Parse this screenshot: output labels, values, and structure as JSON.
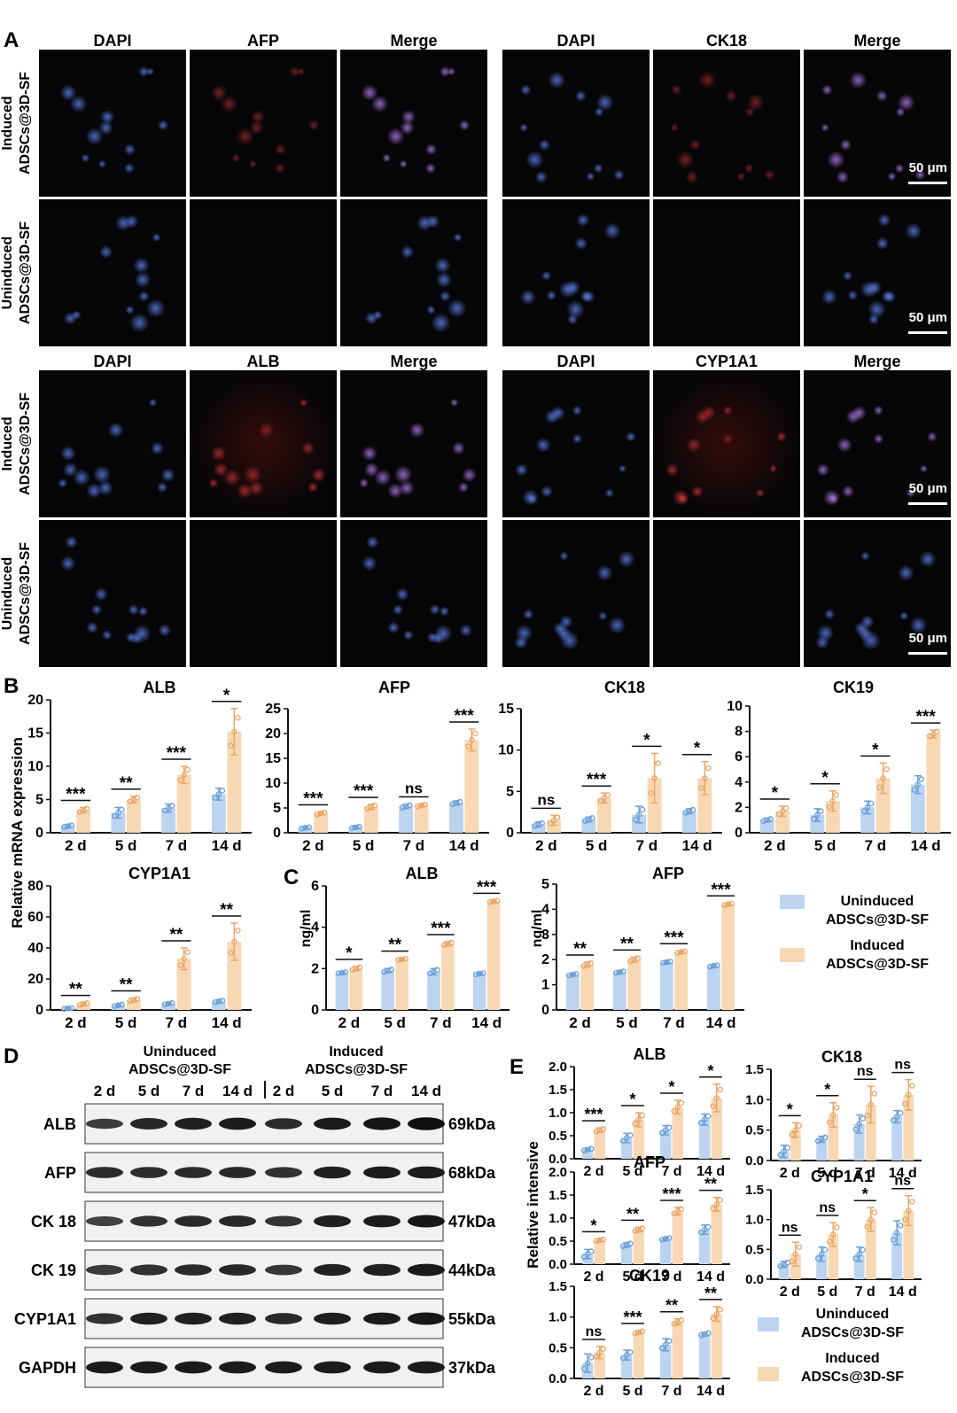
{
  "panel_a": {
    "letter": "A",
    "groups": [
      {
        "label_line1": "Induced",
        "label_line2": "ADSCs@3D-SF"
      },
      {
        "label_line1": "Uninduced",
        "label_line2": "ADSCs@3D-SF"
      },
      {
        "label_line1": "Induced",
        "label_line2": "ADSCs@3D-SF"
      },
      {
        "label_line1": "Uninduced",
        "label_line2": "ADSCs@3D-SF"
      }
    ],
    "headers_top": [
      "DAPI",
      "AFP",
      "Merge",
      "DAPI",
      "CK18",
      "Merge"
    ],
    "headers_bottom": [
      "DAPI",
      "ALB",
      "Merge",
      "DAPI",
      "CYP1A1",
      "Merge"
    ],
    "scale_bar": "50 μm"
  },
  "panel_b": {
    "letter": "B",
    "ylabel": "Relative mRNA expression"
  },
  "panel_c": {
    "letter": "C",
    "ylabel": "ng/ml"
  },
  "panel_d": {
    "letter": "D",
    "group1": {
      "line1": "Uninduced",
      "line2": "ADSCs@3D-SF"
    },
    "group2": {
      "line1": "Induced",
      "line2": "ADSCs@3D-SF"
    },
    "lanes": [
      "2 d",
      "5 d",
      "7 d",
      "14 d",
      "2 d",
      "5 d",
      "7 d",
      "14 d"
    ],
    "proteins": [
      {
        "name": "ALB",
        "kda": "69kDa",
        "intensity": [
          0.55,
          0.75,
          0.8,
          0.85,
          0.7,
          0.85,
          0.9,
          0.95
        ]
      },
      {
        "name": "AFP",
        "kda": "68kDa",
        "intensity": [
          0.7,
          0.7,
          0.7,
          0.72,
          0.65,
          0.8,
          0.85,
          0.85
        ]
      },
      {
        "name": "CK 18",
        "kda": "47kDa",
        "intensity": [
          0.5,
          0.65,
          0.7,
          0.72,
          0.62,
          0.8,
          0.85,
          0.88
        ]
      },
      {
        "name": "CK 19",
        "kda": "44kDa",
        "intensity": [
          0.55,
          0.65,
          0.7,
          0.72,
          0.6,
          0.78,
          0.8,
          0.85
        ]
      },
      {
        "name": "CYP1A1",
        "kda": "55kDa",
        "intensity": [
          0.65,
          0.8,
          0.8,
          0.8,
          0.72,
          0.82,
          0.85,
          0.88
        ]
      },
      {
        "name": "GAPDH",
        "kda": "37kDa",
        "intensity": [
          0.85,
          0.85,
          0.85,
          0.85,
          0.85,
          0.85,
          0.85,
          0.85
        ]
      }
    ]
  },
  "panel_e": {
    "letter": "E",
    "ylabel": "Relative intensive"
  },
  "legend": {
    "uninduced_line1": "Uninduced",
    "uninduced_line2": "ADSCs@3D-SF",
    "induced_line1": "Induced",
    "induced_line2": "ADSCs@3D-SF"
  },
  "colors": {
    "uninduced": "#bcd4ef",
    "induced": "#f8d8b4",
    "uninduced_dot": "#6a9fd8",
    "induced_dot": "#eaa566"
  },
  "chart_data": [
    {
      "id": "b-alb",
      "type": "bar",
      "title": "ALB",
      "categories": [
        "2 d",
        "5 d",
        "7 d",
        "14 d"
      ],
      "ylim": [
        0,
        20
      ],
      "yticks": [
        0,
        5,
        10,
        15,
        20
      ],
      "series": [
        {
          "name": "Uninduced ADSCs@3D-SF",
          "values": [
            1.0,
            3.0,
            3.7,
            5.8
          ],
          "err": [
            0.2,
            0.8,
            0.6,
            0.9
          ]
        },
        {
          "name": "Induced ADSCs@3D-SF",
          "values": [
            3.4,
            5.0,
            8.7,
            15.2
          ],
          "err": [
            0.4,
            0.5,
            1.3,
            3.5
          ]
        }
      ],
      "sig": [
        "***",
        "**",
        "***",
        "*"
      ]
    },
    {
      "id": "b-afp",
      "type": "bar",
      "title": "AFP",
      "categories": [
        "2 d",
        "5 d",
        "7 d",
        "14 d"
      ],
      "ylim": [
        0,
        25
      ],
      "yticks": [
        0,
        5,
        10,
        15,
        20,
        25
      ],
      "series": [
        {
          "name": "Uninduced ADSCs@3D-SF",
          "values": [
            1.0,
            1.1,
            5.3,
            6.0
          ],
          "err": [
            0.2,
            0.2,
            0.4,
            0.4
          ]
        },
        {
          "name": "Induced ADSCs@3D-SF",
          "values": [
            3.9,
            5.2,
            5.5,
            18.7
          ],
          "err": [
            0.3,
            0.5,
            0.3,
            2.2
          ]
        }
      ],
      "sig": [
        "***",
        "***",
        "ns",
        "***"
      ]
    },
    {
      "id": "b-ck18",
      "type": "bar",
      "title": "CK18",
      "categories": [
        "2 d",
        "5 d",
        "7 d",
        "14 d"
      ],
      "ylim": [
        0,
        15
      ],
      "yticks": [
        0,
        5,
        10,
        15
      ],
      "series": [
        {
          "name": "Uninduced ADSCs@3D-SF",
          "values": [
            1.0,
            1.6,
            2.2,
            2.6
          ],
          "err": [
            0.3,
            0.3,
            1.0,
            0.3
          ]
        },
        {
          "name": "Induced ADSCs@3D-SF",
          "values": [
            1.5,
            4.2,
            6.6,
            6.6
          ],
          "err": [
            0.6,
            0.6,
            3.0,
            2.0
          ]
        }
      ],
      "sig": [
        "ns",
        "***",
        "*",
        "*"
      ]
    },
    {
      "id": "b-ck19",
      "type": "bar",
      "title": "CK19",
      "categories": [
        "2 d",
        "5 d",
        "7 d",
        "14 d"
      ],
      "ylim": [
        0,
        10
      ],
      "yticks": [
        0,
        2,
        4,
        6,
        8,
        10
      ],
      "series": [
        {
          "name": "Uninduced ADSCs@3D-SF",
          "values": [
            1.0,
            1.4,
            2.0,
            3.8
          ],
          "err": [
            0.15,
            0.5,
            0.5,
            0.7
          ]
        },
        {
          "name": "Induced ADSCs@3D-SF",
          "values": [
            1.7,
            2.5,
            4.3,
            7.8
          ],
          "err": [
            0.4,
            0.8,
            1.2,
            0.3
          ]
        }
      ],
      "sig": [
        "*",
        "*",
        "*",
        "***"
      ]
    },
    {
      "id": "b-cyp",
      "type": "bar",
      "title": "CYP1A1",
      "categories": [
        "2 d",
        "5 d",
        "7 d",
        "14 d"
      ],
      "ylim": [
        0,
        80
      ],
      "yticks": [
        0,
        20,
        40,
        60,
        80
      ],
      "series": [
        {
          "name": "Uninduced ADSCs@3D-SF",
          "values": [
            1.0,
            3.0,
            4.0,
            5.5
          ],
          "err": [
            0.5,
            0.8,
            0.8,
            1.0
          ]
        },
        {
          "name": "Induced ADSCs@3D-SF",
          "values": [
            3.8,
            6.5,
            33.0,
            44.0
          ],
          "err": [
            1.0,
            1.2,
            7.0,
            12.0
          ]
        }
      ],
      "sig": [
        "**",
        "**",
        "**",
        "**"
      ]
    },
    {
      "id": "c-alb",
      "type": "bar",
      "title": "ALB",
      "categories": [
        "2 d",
        "5 d",
        "7 d",
        "14 d"
      ],
      "ylim": [
        0,
        6
      ],
      "yticks": [
        0,
        2,
        4,
        6
      ],
      "series": [
        {
          "name": "Uninduced ADSCs@3D-SF",
          "values": [
            1.8,
            1.9,
            1.85,
            1.75
          ],
          "err": [
            0.05,
            0.1,
            0.15,
            0.05
          ]
        },
        {
          "name": "Induced ADSCs@3D-SF",
          "values": [
            2.0,
            2.45,
            3.2,
            5.25
          ],
          "err": [
            0.1,
            0.05,
            0.1,
            0.05
          ]
        }
      ],
      "sig": [
        "*",
        "**",
        "***",
        "***"
      ]
    },
    {
      "id": "c-afp",
      "type": "bar",
      "title": "AFP",
      "categories": [
        "2 d",
        "5 d",
        "7 d",
        "14 d"
      ],
      "ylim": [
        0,
        5
      ],
      "yticks": [
        0,
        1,
        2,
        3,
        4,
        5
      ],
      "series": [
        {
          "name": "Uninduced ADSCs@3D-SF",
          "values": [
            1.4,
            1.5,
            1.9,
            1.75
          ],
          "err": [
            0.05,
            0.05,
            0.05,
            0.05
          ]
        },
        {
          "name": "Induced ADSCs@3D-SF",
          "values": [
            1.8,
            2.0,
            2.3,
            4.2
          ],
          "err": [
            0.1,
            0.1,
            0.05,
            0.05
          ]
        }
      ],
      "sig": [
        "**",
        "**",
        "***",
        "***"
      ]
    },
    {
      "id": "e-alb",
      "type": "bar",
      "title": "ALB",
      "categories": [
        "2 d",
        "5 d",
        "7 d",
        "14 d"
      ],
      "ylim": [
        0,
        2.0
      ],
      "yticks": [
        0.0,
        0.5,
        1.0,
        1.5,
        2.0
      ],
      "series": [
        {
          "name": "Uninduced ADSCs@3D-SF",
          "values": [
            0.2,
            0.45,
            0.62,
            0.85
          ],
          "err": [
            0.03,
            0.1,
            0.1,
            0.12
          ]
        },
        {
          "name": "Induced ADSCs@3D-SF",
          "values": [
            0.62,
            0.85,
            1.12,
            1.32
          ],
          "err": [
            0.05,
            0.15,
            0.15,
            0.3
          ]
        }
      ],
      "sig": [
        "***",
        "*",
        "*",
        "*"
      ]
    },
    {
      "id": "e-afp",
      "type": "bar",
      "title": "AFP",
      "categories": [
        "2 d",
        "5 d",
        "7 d",
        "14 d"
      ],
      "ylim": [
        0,
        2.0
      ],
      "yticks": [
        0.0,
        0.5,
        1.0,
        1.5,
        2.0
      ],
      "series": [
        {
          "name": "Uninduced ADSCs@3D-SF",
          "values": [
            0.22,
            0.42,
            0.55,
            0.75
          ],
          "err": [
            0.1,
            0.05,
            0.03,
            0.1
          ]
        },
        {
          "name": "Induced ADSCs@3D-SF",
          "values": [
            0.52,
            0.75,
            1.15,
            1.3
          ],
          "err": [
            0.03,
            0.05,
            0.08,
            0.15
          ]
        }
      ],
      "sig": [
        "*",
        "**",
        "***",
        "**"
      ]
    },
    {
      "id": "e-ck19",
      "type": "bar",
      "title": "CK19",
      "categories": [
        "2 d",
        "5 d",
        "7 d",
        "14 d"
      ],
      "ylim": [
        0,
        1.5
      ],
      "yticks": [
        0.0,
        0.5,
        1.0,
        1.5
      ],
      "series": [
        {
          "name": "Uninduced ADSCs@3D-SF",
          "values": [
            0.25,
            0.38,
            0.55,
            0.72
          ],
          "err": [
            0.15,
            0.08,
            0.1,
            0.03
          ]
        },
        {
          "name": "Induced ADSCs@3D-SF",
          "values": [
            0.42,
            0.75,
            0.92,
            1.05
          ],
          "err": [
            0.1,
            0.03,
            0.05,
            0.12
          ]
        }
      ],
      "sig": [
        "ns",
        "***",
        "**",
        "**"
      ]
    },
    {
      "id": "e-ck18",
      "type": "bar",
      "title": "CK18",
      "categories": [
        "2 d",
        "5 d",
        "7 d",
        "14 d"
      ],
      "ylim": [
        0,
        1.5
      ],
      "yticks": [
        0.0,
        0.5,
        1.0,
        1.5
      ],
      "series": [
        {
          "name": "Uninduced ADSCs@3D-SF",
          "values": [
            0.15,
            0.35,
            0.6,
            0.72
          ],
          "err": [
            0.1,
            0.05,
            0.15,
            0.1
          ]
        },
        {
          "name": "Induced ADSCs@3D-SF",
          "values": [
            0.5,
            0.75,
            0.92,
            1.08
          ],
          "err": [
            0.12,
            0.2,
            0.3,
            0.25
          ]
        }
      ],
      "sig": [
        "*",
        "*",
        "ns",
        "ns"
      ]
    },
    {
      "id": "e-cyp",
      "type": "bar",
      "title": "CYP1A1",
      "categories": [
        "2 d",
        "5 d",
        "7 d",
        "14 d"
      ],
      "ylim": [
        0,
        1.5
      ],
      "yticks": [
        0.0,
        0.5,
        1.0,
        1.5
      ],
      "series": [
        {
          "name": "Uninduced ADSCs@3D-SF",
          "values": [
            0.25,
            0.42,
            0.42,
            0.78
          ],
          "err": [
            0.05,
            0.12,
            0.12,
            0.2
          ]
        },
        {
          "name": "Induced ADSCs@3D-SF",
          "values": [
            0.42,
            0.75,
            1.0,
            1.15
          ],
          "err": [
            0.2,
            0.2,
            0.2,
            0.25
          ]
        }
      ],
      "sig": [
        "ns",
        "ns",
        "*",
        "ns"
      ]
    }
  ]
}
